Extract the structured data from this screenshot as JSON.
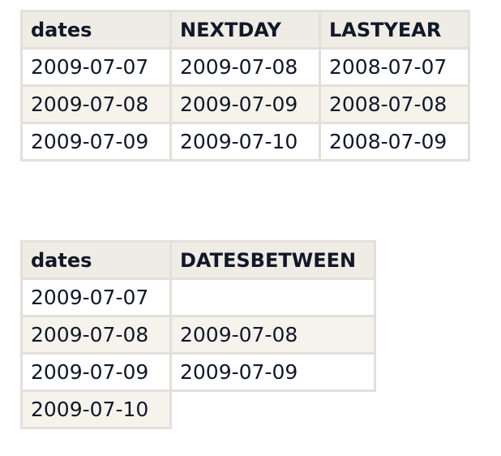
{
  "table1": {
    "headers": [
      "dates",
      "NEXTDAY",
      "LASTYEAR"
    ],
    "rows": [
      [
        "2009-07-07",
        "2009-07-08",
        "2008-07-07"
      ],
      [
        "2009-07-08",
        "2009-07-09",
        "2008-07-08"
      ],
      [
        "2009-07-09",
        "2009-07-10",
        "2008-07-09"
      ]
    ]
  },
  "table2": {
    "headers": [
      "dates",
      "DATESBETWEEN"
    ],
    "rows": [
      [
        "2009-07-07",
        ""
      ],
      [
        "2009-07-08",
        "2009-07-08"
      ],
      [
        "2009-07-09",
        "2009-07-09"
      ],
      [
        "2009-07-10",
        ""
      ]
    ]
  }
}
